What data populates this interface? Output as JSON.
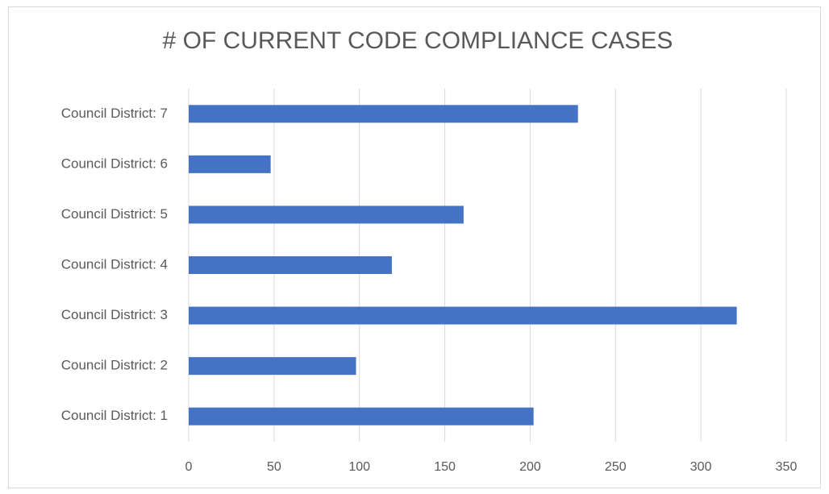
{
  "chart_data": {
    "type": "bar",
    "orientation": "horizontal",
    "title": "# OF CURRENT CODE COMPLIANCE CASES",
    "categories": [
      "Council District: 1",
      "Council District: 2",
      "Council District: 3",
      "Council District: 4",
      "Council District: 5",
      "Council District: 6",
      "Council District: 7"
    ],
    "values": [
      202,
      98,
      321,
      119,
      161,
      48,
      228
    ],
    "color": "#4472c4",
    "xlim": [
      0,
      350
    ],
    "xticks": [
      0,
      50,
      100,
      150,
      200,
      250,
      300,
      350
    ],
    "grid": true
  }
}
